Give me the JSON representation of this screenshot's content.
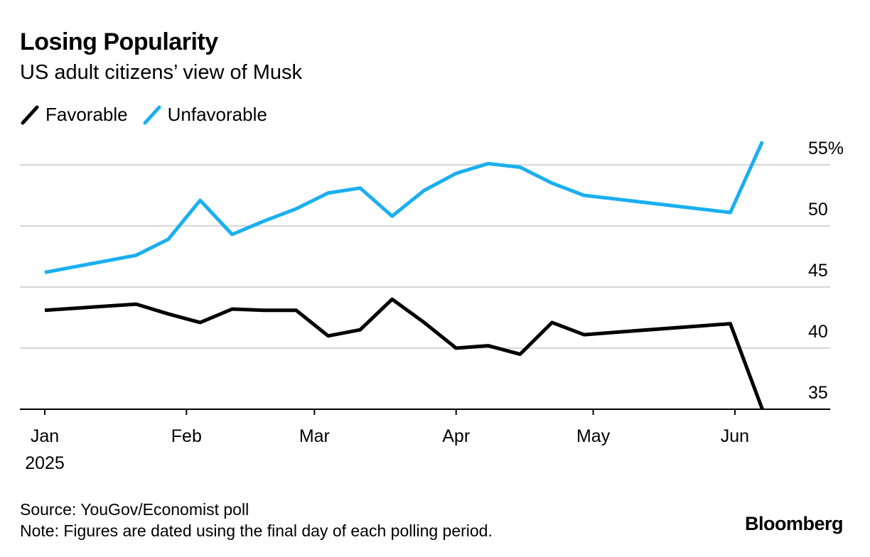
{
  "header": {
    "title": "Losing Popularity",
    "subtitle": "US adult citizens’ view of Musk"
  },
  "legend": [
    {
      "label": "Favorable",
      "color": "#000000"
    },
    {
      "label": "Unfavorable",
      "color": "#1aaff0"
    }
  ],
  "footer": {
    "source": "Source: YouGov/Economist poll",
    "note": "Note: Figures are dated using the final day of each polling period.",
    "brand": "Bloomberg"
  },
  "chart_data": {
    "type": "line",
    "ylim": [
      35,
      57
    ],
    "y_ticks": [
      {
        "value": 55,
        "label": "55%"
      },
      {
        "value": 50,
        "label": "50"
      },
      {
        "value": 45,
        "label": "45"
      },
      {
        "value": 40,
        "label": "40"
      },
      {
        "value": 35,
        "label": "35"
      }
    ],
    "x_ticks": [
      {
        "day": 0,
        "label": "Jan",
        "sublabel": "2025"
      },
      {
        "day": 31,
        "label": "Feb",
        "sublabel": ""
      },
      {
        "day": 59,
        "label": "Mar",
        "sublabel": ""
      },
      {
        "day": 90,
        "label": "Apr",
        "sublabel": ""
      },
      {
        "day": 120,
        "label": "May",
        "sublabel": ""
      },
      {
        "day": 151,
        "label": "Jun",
        "sublabel": ""
      }
    ],
    "grid": true,
    "legend_position": "top-left",
    "series": [
      {
        "name": "Unfavorable",
        "color": "#1aaff0",
        "x": [
          0,
          20,
          27,
          34,
          41,
          48,
          55,
          62,
          69,
          76,
          83,
          90,
          97,
          104,
          111,
          118,
          125,
          150,
          157
        ],
        "y": [
          46.2,
          47.6,
          48.9,
          52.1,
          49.3,
          50.4,
          51.4,
          52.7,
          53.1,
          50.8,
          52.9,
          54.3,
          55.1,
          54.8,
          53.5,
          52.5,
          52.2,
          51.1,
          56.9
        ]
      },
      {
        "name": "Favorable",
        "color": "#000000",
        "x": [
          0,
          20,
          27,
          34,
          41,
          48,
          55,
          62,
          69,
          76,
          83,
          90,
          97,
          104,
          111,
          118,
          125,
          150,
          157
        ],
        "y": [
          43.1,
          43.6,
          42.8,
          42.1,
          43.2,
          43.1,
          43.1,
          41.0,
          41.5,
          44.0,
          42.1,
          40.0,
          40.2,
          39.5,
          42.1,
          41.1,
          41.3,
          42.0,
          35.0
        ]
      }
    ]
  }
}
